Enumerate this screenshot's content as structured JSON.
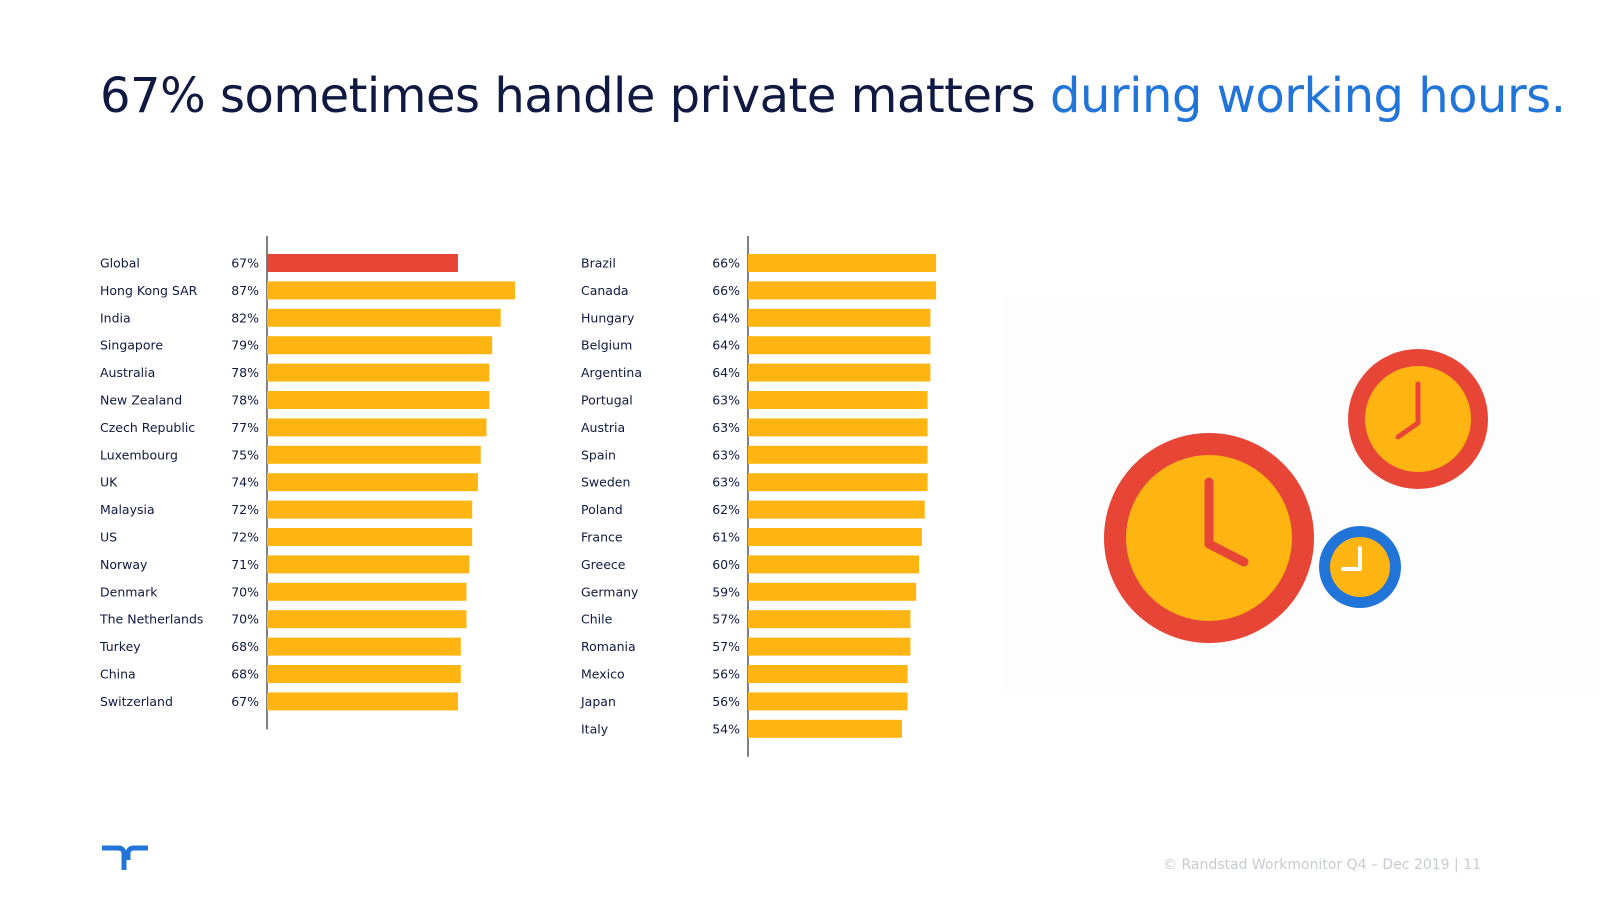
{
  "title": {
    "main": "67% sometimes handle private matters ",
    "accent": "during working hours."
  },
  "colors": {
    "navy": "#0f1941",
    "accent_blue": "#2175d9",
    "bar_default": "#ffb511",
    "bar_highlight": "#e74536"
  },
  "chart_data": [
    {
      "type": "bar",
      "orientation": "horizontal",
      "categories": [
        "Global",
        "Hong Kong SAR",
        "India",
        "Singapore",
        "Australia",
        "New Zealand",
        "Czech Republic",
        "Luxembourg",
        "UK",
        "Malaysia",
        "US",
        "Norway",
        "Denmark",
        "The Netherlands",
        "Turkey",
        "China",
        "Switzerland"
      ],
      "values": [
        67,
        87,
        82,
        79,
        78,
        78,
        77,
        75,
        74,
        72,
        72,
        71,
        70,
        70,
        68,
        68,
        67
      ],
      "value_labels": [
        "67%",
        "87%",
        "82%",
        "79%",
        "78%",
        "78%",
        "77%",
        "75%",
        "74%",
        "72%",
        "72%",
        "71%",
        "70%",
        "70%",
        "68%",
        "68%",
        "67%"
      ],
      "highlight": "Global",
      "xlim": [
        0,
        100
      ]
    },
    {
      "type": "bar",
      "orientation": "horizontal",
      "categories": [
        "Brazil",
        "Canada",
        "Hungary",
        "Belgium",
        "Argentina",
        "Portugal",
        "Austria",
        "Spain",
        "Sweden",
        "Poland",
        "France",
        "Greece",
        "Germany",
        "Chile",
        "Romania",
        "Mexico",
        "Japan",
        "Italy"
      ],
      "values": [
        66,
        66,
        64,
        64,
        64,
        63,
        63,
        63,
        63,
        62,
        61,
        60,
        59,
        57,
        57,
        56,
        56,
        54
      ],
      "value_labels": [
        "66%",
        "66%",
        "64%",
        "64%",
        "64%",
        "63%",
        "63%",
        "63%",
        "63%",
        "62%",
        "61%",
        "60%",
        "59%",
        "57%",
        "57%",
        "56%",
        "56%",
        "54%"
      ],
      "xlim": [
        0,
        100
      ]
    }
  ],
  "footer": {
    "text": "© Randstad Workmonitor Q4 – Dec 2019  |  11"
  },
  "icons": {
    "logo": "randstad-logo-icon",
    "clock_large": "clock-icon",
    "clock_medium": "clock-icon",
    "clock_small": "clock-icon"
  }
}
